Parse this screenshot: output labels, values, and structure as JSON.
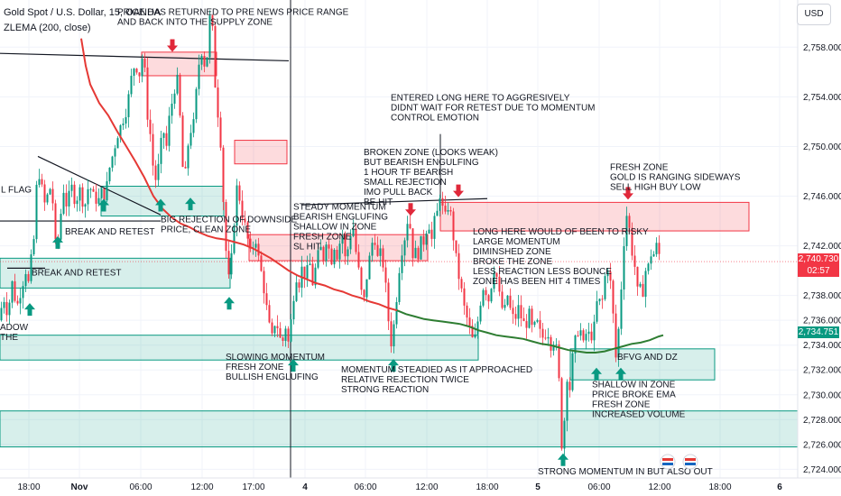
{
  "header": {
    "symbol": "Gold Spot / U.S. Dollar, 15, OANDA",
    "indicator": "ZLEMA (200, close)"
  },
  "currency_button": "USD",
  "price_tags": {
    "last_price": "2,740.730",
    "countdown": "02:57",
    "ema_value": "2,734.751",
    "last_color": "#f23645",
    "ema_color": "#089981"
  },
  "colors": {
    "zone_green": "#089981",
    "zone_red": "#f23645",
    "ema_red": "#e53935",
    "ema_green": "#2e7d32",
    "arrow_up": "#089981",
    "arrow_down": "#e0283a"
  },
  "chart_data": {
    "type": "candlestick",
    "y_axis": {
      "ticks": [
        "2,758.000",
        "2,754.000",
        "2,750.000",
        "2,746.000",
        "2,742.000",
        "2,738.000",
        "2,736.000",
        "2,734.000",
        "2,732.000",
        "2,730.000",
        "2,728.000",
        "2,726.000",
        "2,724.000"
      ],
      "range": [
        2723.3,
        2761.8
      ],
      "position": "right"
    },
    "x_axis": {
      "ticks": [
        "18:00",
        "Nov",
        "06:00",
        "12:00",
        "17:00",
        "4",
        "06:00",
        "12:00",
        "18:00",
        "5",
        "06:00",
        "12:00",
        "18:00",
        "6"
      ]
    },
    "price_path": [
      [
        0,
        2735.5
      ],
      [
        5,
        2738
      ],
      [
        10,
        2736.5
      ],
      [
        15,
        2739
      ],
      [
        20,
        2737
      ],
      [
        25,
        2738.5
      ],
      [
        30,
        2740
      ],
      [
        33,
        2739
      ],
      [
        37,
        2741.5
      ],
      [
        40,
        2743
      ],
      [
        43,
        2748.5
      ],
      [
        47,
        2747
      ],
      [
        52,
        2745
      ],
      [
        56,
        2747
      ],
      [
        60,
        2745.5
      ],
      [
        64,
        2741
      ],
      [
        68,
        2744
      ],
      [
        72,
        2746.5
      ],
      [
        76,
        2745
      ],
      [
        80,
        2747
      ],
      [
        85,
        2745.5
      ],
      [
        90,
        2746.5
      ],
      [
        95,
        2745
      ],
      [
        100,
        2747
      ],
      [
        105,
        2746
      ],
      [
        110,
        2745.5
      ],
      [
        115,
        2746.5
      ],
      [
        118,
        2745.8
      ],
      [
        122,
        2748
      ],
      [
        127,
        2749.5
      ],
      [
        132,
        2751
      ],
      [
        137,
        2752
      ],
      [
        142,
        2753
      ],
      [
        147,
        2755.5
      ],
      [
        152,
        2757
      ],
      [
        155,
        2755
      ],
      [
        158,
        2757.5
      ],
      [
        162,
        2756
      ],
      [
        165,
        2752.5
      ],
      [
        168,
        2751
      ],
      [
        171,
        2748.5
      ],
      [
        175,
        2747
      ],
      [
        178,
        2749
      ],
      [
        182,
        2751.5
      ],
      [
        186,
        2750
      ],
      [
        190,
        2753
      ],
      [
        194,
        2754
      ],
      [
        197,
        2756
      ],
      [
        200,
        2754
      ],
      [
        203,
        2749
      ],
      [
        206,
        2747
      ],
      [
        209,
        2749.5
      ],
      [
        212,
        2751.5
      ],
      [
        215,
        2751
      ],
      [
        218,
        2753.5
      ],
      [
        221,
        2756
      ],
      [
        224,
        2758
      ],
      [
        227,
        2757
      ],
      [
        230,
        2756
      ],
      [
        233,
        2760
      ],
      [
        236,
        2761
      ],
      [
        239,
        2756
      ],
      [
        242,
        2753
      ],
      [
        245,
        2752
      ],
      [
        248,
        2747
      ],
      [
        251,
        2743
      ],
      [
        254,
        2738.8
      ],
      [
        258,
        2741
      ],
      [
        262,
        2745
      ],
      [
        265,
        2747.5
      ],
      [
        268,
        2745
      ],
      [
        272,
        2744
      ],
      [
        276,
        2742.5
      ],
      [
        280,
        2741
      ],
      [
        284,
        2743
      ],
      [
        288,
        2741
      ],
      [
        292,
        2739.5
      ],
      [
        296,
        2737.5
      ],
      [
        300,
        2735.5
      ],
      [
        304,
        2734.3
      ],
      [
        307,
        2736.5
      ],
      [
        310,
        2735
      ],
      [
        314,
        2734
      ],
      [
        318,
        2735.5
      ],
      [
        322,
        2733.8
      ],
      [
        325,
        2737
      ],
      [
        328,
        2738.5
      ],
      [
        331,
        2740
      ],
      [
        334,
        2738.5
      ],
      [
        337,
        2741
      ],
      [
        340,
        2739
      ],
      [
        344,
        2741
      ],
      [
        348,
        2739
      ],
      [
        352,
        2740.5
      ],
      [
        356,
        2742
      ],
      [
        360,
        2741
      ],
      [
        364,
        2743
      ],
      [
        368,
        2740.5
      ],
      [
        372,
        2742
      ],
      [
        376,
        2741
      ],
      [
        380,
        2743.5
      ],
      [
        384,
        2741
      ],
      [
        388,
        2742
      ],
      [
        392,
        2744
      ],
      [
        396,
        2741.5
      ],
      [
        400,
        2739.5
      ],
      [
        404,
        2737
      ],
      [
        408,
        2739.5
      ],
      [
        412,
        2741.5
      ],
      [
        416,
        2743
      ],
      [
        420,
        2741
      ],
      [
        424,
        2741.5
      ],
      [
        427,
        2740
      ],
      [
        430,
        2738
      ],
      [
        433,
        2735
      ],
      [
        436,
        2733.8
      ],
      [
        439,
        2736.5
      ],
      [
        442,
        2738.5
      ],
      [
        445,
        2741
      ],
      [
        448,
        2742
      ],
      [
        451,
        2743
      ],
      [
        454,
        2744.5
      ],
      [
        457,
        2743
      ],
      [
        460,
        2740.5
      ],
      [
        463,
        2742
      ],
      [
        466,
        2741
      ],
      [
        469,
        2743
      ],
      [
        472,
        2742
      ],
      [
        475,
        2744
      ],
      [
        478,
        2743.5
      ],
      [
        481,
        2742
      ],
      [
        484,
        2745
      ],
      [
        487,
        2744.5
      ],
      [
        490,
        2747
      ],
      [
        493,
        2744
      ],
      [
        496,
        2744.5
      ],
      [
        499,
        2745.5
      ],
      [
        502,
        2744
      ],
      [
        505,
        2742
      ],
      [
        508,
        2740.5
      ],
      [
        511,
        2739
      ],
      [
        514,
        2738
      ],
      [
        517,
        2736.5
      ],
      [
        520,
        2736
      ],
      [
        523,
        2735
      ],
      [
        526,
        2734.2
      ],
      [
        529,
        2734.8
      ],
      [
        532,
        2736.5
      ],
      [
        535,
        2738
      ],
      [
        538,
        2739
      ],
      [
        541,
        2738
      ],
      [
        544,
        2737.5
      ],
      [
        547,
        2739.5
      ],
      [
        550,
        2740.5
      ],
      [
        553,
        2739
      ],
      [
        556,
        2737.5
      ],
      [
        560,
        2736.5
      ],
      [
        564,
        2738
      ],
      [
        568,
        2736.5
      ],
      [
        572,
        2736
      ],
      [
        576,
        2737
      ],
      [
        580,
        2736
      ],
      [
        584,
        2735.5
      ],
      [
        588,
        2736.5
      ],
      [
        592,
        2735
      ],
      [
        596,
        2736
      ],
      [
        600,
        2735
      ],
      [
        604,
        2734.5
      ],
      [
        608,
        2735.3
      ],
      [
        612,
        2734
      ],
      [
        616,
        2734.5
      ],
      [
        619,
        2733.3
      ],
      [
        622,
        2730
      ],
      [
        624,
        2726
      ],
      [
        627,
        2728
      ],
      [
        630,
        2731.5
      ],
      [
        633,
        2730.5
      ],
      [
        636,
        2733
      ],
      [
        640,
        2734.8
      ],
      [
        644,
        2735.5
      ],
      [
        648,
        2734
      ],
      [
        652,
        2735.2
      ],
      [
        656,
        2734.5
      ],
      [
        660,
        2735.5
      ],
      [
        664,
        2738
      ],
      [
        668,
        2737
      ],
      [
        672,
        2739.5
      ],
      [
        676,
        2740.5
      ],
      [
        680,
        2737.5
      ],
      [
        684,
        2733
      ],
      [
        688,
        2736
      ],
      [
        691,
        2740
      ],
      [
        694,
        2743.5
      ],
      [
        697,
        2745
      ],
      [
        700,
        2742.5
      ],
      [
        703,
        2741
      ],
      [
        706,
        2740
      ],
      [
        709,
        2737.5
      ],
      [
        712,
        2739
      ],
      [
        715,
        2738
      ],
      [
        718,
        2741
      ],
      [
        721,
        2740
      ],
      [
        724,
        2742
      ],
      [
        727,
        2741
      ],
      [
        730,
        2742.5
      ],
      [
        733,
        2740.7
      ]
    ],
    "ema_line": [
      [
        90,
        2758.7
      ],
      [
        95,
        2756.5
      ],
      [
        100,
        2755
      ],
      [
        110,
        2753.5
      ],
      [
        120,
        2752.5
      ],
      [
        130,
        2751.2
      ],
      [
        140,
        2750
      ],
      [
        150,
        2748.8
      ],
      [
        160,
        2747.5
      ],
      [
        170,
        2746
      ],
      [
        180,
        2745
      ],
      [
        190,
        2744.3
      ],
      [
        200,
        2743.8
      ],
      [
        210,
        2743.5
      ],
      [
        220,
        2743.1
      ],
      [
        230,
        2742.8
      ],
      [
        240,
        2742.6
      ],
      [
        250,
        2742.5
      ],
      [
        260,
        2742.3
      ],
      [
        270,
        2742.1
      ],
      [
        280,
        2741.8
      ],
      [
        290,
        2741.4
      ],
      [
        300,
        2741
      ],
      [
        310,
        2740.5
      ],
      [
        320,
        2740
      ],
      [
        330,
        2739.6
      ],
      [
        340,
        2739.3
      ],
      [
        350,
        2739
      ],
      [
        360,
        2738.8
      ],
      [
        370,
        2738.5
      ],
      [
        380,
        2738.3
      ],
      [
        390,
        2738
      ],
      [
        400,
        2737.8
      ],
      [
        410,
        2737.5
      ],
      [
        420,
        2737.3
      ],
      [
        430,
        2737
      ],
      [
        440,
        2736.8
      ],
      [
        450,
        2736.5
      ],
      [
        460,
        2736.3
      ],
      [
        470,
        2736.1
      ],
      [
        480,
        2736
      ],
      [
        490,
        2735.9
      ],
      [
        500,
        2735.8
      ],
      [
        510,
        2735.7
      ],
      [
        520,
        2735.5
      ],
      [
        530,
        2735.2
      ],
      [
        540,
        2735
      ],
      [
        550,
        2734.8
      ],
      [
        560,
        2734.7
      ],
      [
        570,
        2734.6
      ],
      [
        580,
        2734.5
      ],
      [
        590,
        2734.3
      ],
      [
        600,
        2734.1
      ],
      [
        610,
        2734
      ],
      [
        620,
        2733.8
      ],
      [
        630,
        2733.6
      ],
      [
        640,
        2733.5
      ],
      [
        650,
        2733.4
      ],
      [
        660,
        2733.4
      ],
      [
        670,
        2733.5
      ],
      [
        680,
        2733.7
      ],
      [
        690,
        2733.9
      ],
      [
        700,
        2734.1
      ],
      [
        710,
        2734.2
      ],
      [
        720,
        2734.4
      ],
      [
        730,
        2734.7
      ],
      [
        735,
        2734.8
      ]
    ],
    "ema_green_from": 440,
    "zones": [
      {
        "type": "supply",
        "x1": 157,
        "x2": 240,
        "y_top": 2757.6,
        "y_bot": 2755.7
      },
      {
        "type": "supply",
        "x1": 260,
        "x2": 318,
        "y_top": 2750.5,
        "y_bot": 2748.6
      },
      {
        "type": "supply",
        "x1": 276,
        "x2": 474,
        "y_top": 2742.9,
        "y_bot": 2740.8
      },
      {
        "type": "supply",
        "x1": 488,
        "x2": 830,
        "y_top": 2745.5,
        "y_bot": 2743.2
      },
      {
        "type": "demand",
        "x1": 112,
        "x2": 248,
        "y_top": 2746.8,
        "y_bot": 2744.4
      },
      {
        "type": "demand",
        "x1": 0,
        "x2": 255,
        "y_top": 2741,
        "y_bot": 2738.6
      },
      {
        "type": "demand",
        "x1": 0,
        "x2": 530,
        "y_top": 2734.8,
        "y_bot": 2732.8
      },
      {
        "type": "demand",
        "x1": 632,
        "x2": 792,
        "y_top": 2733.7,
        "y_bot": 2731.2
      },
      {
        "type": "demand",
        "x1": 0,
        "x2": 884,
        "y_top": 2728.7,
        "y_bot": 2725.8
      }
    ],
    "lines": [
      {
        "x1": 0,
        "y1": 2757.5,
        "x2": 320,
        "y2": 2756.9,
        "color": "#131722"
      },
      {
        "x1": 42,
        "y1": 2749.2,
        "x2": 178,
        "y2": 2744.5,
        "color": "#131722"
      },
      {
        "x1": 0,
        "y1": 2744,
        "x2": 178,
        "y2": 2744,
        "color": "#131722"
      },
      {
        "x1": 8,
        "y1": 2740.2,
        "x2": 50,
        "y2": 2740.2,
        "color": "#131722"
      },
      {
        "x1": 334,
        "y1": 2745.3,
        "x2": 540,
        "y2": 2745.8,
        "color": "#131722"
      }
    ],
    "vlines": [
      {
        "x": 322,
        "y_top": 2761.8,
        "y_bot": 2723.3,
        "color": "#131722"
      },
      {
        "x": 488,
        "y_top": 2751,
        "y_bot": 2745.3,
        "color": "#131722"
      }
    ],
    "arrows_up": [
      {
        "x": 33,
        "y": 2736.8
      },
      {
        "x": 64,
        "y": 2742.2
      },
      {
        "x": 115,
        "y": 2745.2
      },
      {
        "x": 178,
        "y": 2745.2
      },
      {
        "x": 211,
        "y": 2745.3
      },
      {
        "x": 254,
        "y": 2737.3
      },
      {
        "x": 325,
        "y": 2732.3
      },
      {
        "x": 436,
        "y": 2732.3
      },
      {
        "x": 624,
        "y": 2724.7
      },
      {
        "x": 661,
        "y": 2731.6
      },
      {
        "x": 688,
        "y": 2731.6
      }
    ],
    "arrows_down": [
      {
        "x": 191,
        "y": 2758.2
      },
      {
        "x": 455,
        "y": 2745
      },
      {
        "x": 508,
        "y": 2746.5
      },
      {
        "x": 696,
        "y": 2746.3
      }
    ],
    "annotations": [
      {
        "x": 130,
        "y": 2760.6,
        "lines": [
          "PRICE HAS RETURNED TO PRE NEWS PRICE RANGE",
          "AND BACK INTO THE SUPPLY ZONE"
        ]
      },
      {
        "x": 433,
        "y": 2753.7,
        "lines": [
          "ENTERED LONG HERE TO AGGRESIVELY",
          "DIDNT WAIT FOR RETEST DUE TO MOMENTUM",
          "CONTROL EMOTION"
        ]
      },
      {
        "x": 403,
        "y": 2749.3,
        "lines": [
          "BROKEN ZONE (LOOKS WEAK)",
          "BUT BEARISH ENGULFING",
          "1 HOUR TF BEARISH",
          "SMALL REJECTION",
          "IMO PULL BACK",
          "BE HIT"
        ]
      },
      {
        "x": 676,
        "y": 2748.1,
        "lines": [
          "FRESH ZONE",
          "GOLD IS RANGING SIDEWAYS",
          "SELL HIGH BUY LOW"
        ]
      },
      {
        "x": 1,
        "y": 2746.3,
        "lines": [
          "L FLAG"
        ]
      },
      {
        "x": 72,
        "y": 2742.9,
        "lines": [
          "BREAK AND RETEST"
        ]
      },
      {
        "x": 178,
        "y": 2743.9,
        "lines": [
          "BIG REJECTION OF DOWNSIDE",
          " PRICE, CLEAN ZONE"
        ]
      },
      {
        "x": 325,
        "y": 2744.9,
        "lines": [
          "STEADY MOMENTUM",
          "BEARISH ENGLUFING",
          "SHALLOW IN ZONE",
          "FRESH ZONE",
          "SL HIT"
        ]
      },
      {
        "x": 524,
        "y": 2742.9,
        "lines": [
          "LONG HERE WOULD OF BEEN TO RISKY",
          "LARGE MOMENTUM",
          "DIMINSHED ZONE",
          "BROKE THE ZONE",
          "LESS REACTION LESS BOUNCE",
          "ZONE HAS BEEN HIT 4 TIMES"
        ]
      },
      {
        "x": 35,
        "y": 2739.6,
        "lines": [
          "BREAK AND RETEST"
        ]
      },
      {
        "x": 0,
        "y": 2735.2,
        "lines": [
          "ADOW",
          " THE"
        ]
      },
      {
        "x": 250,
        "y": 2732.8,
        "lines": [
          "SLOWING MOMENTUM",
          "FRESH ZONE",
          "BULLISH ENGLUFING"
        ]
      },
      {
        "x": 378,
        "y": 2731.8,
        "lines": [
          "MOMENTUM STEADIED AS IT APPROACHED",
          "RELATIVE REJECTION TWICE",
          "STRONG REACTION"
        ]
      },
      {
        "x": 684,
        "y": 2732.8,
        "lines": [
          "BFVG AND DZ"
        ]
      },
      {
        "x": 656,
        "y": 2730.6,
        "lines": [
          "SHALLOW IN ZONE",
          "PRICE BROKE EMA",
          "FRESH ZONE",
          "INCREASED VOLUME"
        ]
      },
      {
        "x": 596,
        "y": 2723.6,
        "lines": [
          "STRONG MOMENTUM IN BUT ALSO OUT"
        ]
      }
    ]
  }
}
